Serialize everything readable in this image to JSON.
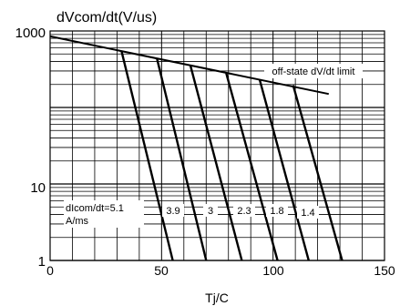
{
  "chart_data": {
    "type": "line",
    "ylabel": "dVcom/dt(V/us)",
    "xlabel": "Tj/C",
    "xlim": [
      0,
      150
    ],
    "ylim": [
      1,
      1000
    ],
    "y_scale": "log",
    "grid": true,
    "x_ticks": [
      "0",
      "50",
      "100",
      "150"
    ],
    "y_ticks": [
      "1000",
      "10",
      "1"
    ],
    "series": [
      {
        "name": "off-state dV/dt limit",
        "x": [
          0,
          125
        ],
        "y": [
          850,
          150
        ]
      },
      {
        "name": "5.1",
        "x": [
          32,
          55
        ],
        "y": [
          550,
          1
        ]
      },
      {
        "name": "3.9",
        "x": [
          48,
          70
        ],
        "y": [
          430,
          1
        ]
      },
      {
        "name": "3",
        "x": [
          63,
          86
        ],
        "y": [
          350,
          1
        ]
      },
      {
        "name": "2.3",
        "x": [
          79,
          102
        ],
        "y": [
          280,
          1
        ]
      },
      {
        "name": "1.8",
        "x": [
          94,
          116
        ],
        "y": [
          230,
          1
        ]
      },
      {
        "name": "1.4",
        "x": [
          109,
          131
        ],
        "y": [
          195,
          1
        ]
      }
    ],
    "annotations": {
      "limit_label": "off-state dV/dt limit",
      "curve_prefix": "dIcom/dt=5.1",
      "curve_unit": "A/ms",
      "curve_values": [
        "3.9",
        "3",
        "2.3",
        "1.8",
        "1.4"
      ]
    }
  }
}
